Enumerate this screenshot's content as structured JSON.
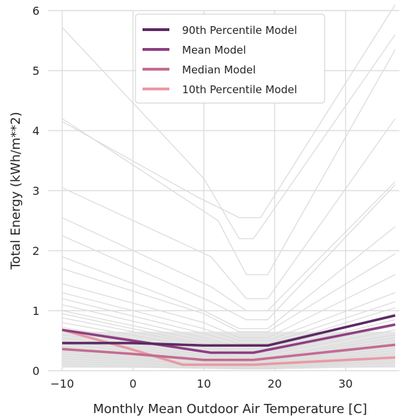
{
  "chart_data": {
    "type": "line",
    "xlabel": "Monthly Mean Outdoor Air Temperature [C]",
    "ylabel": "Total Energy (kWh/m**2)",
    "xlim": [
      -12,
      37.6
    ],
    "ylim": [
      0,
      6
    ],
    "xticks": [
      -10,
      0,
      10,
      20,
      30
    ],
    "yticks": [
      0,
      1,
      2,
      3,
      4,
      5,
      6
    ],
    "xtick_labels": [
      "−10",
      "0",
      "10",
      "20",
      "30"
    ],
    "ytick_labels": [
      "0",
      "1",
      "2",
      "3",
      "4",
      "5",
      "6"
    ],
    "grid": true,
    "legend_position": "top-center",
    "background_series_color": "#dcdcdc",
    "background_series": [
      [
        [
          -10,
          5.72
        ],
        [
          10,
          3.2
        ],
        [
          15,
          2.2
        ],
        [
          17,
          2.2
        ],
        [
          37,
          5.6
        ]
      ],
      [
        [
          -10,
          4.2
        ],
        [
          12,
          2.5
        ],
        [
          16,
          1.6
        ],
        [
          19,
          1.6
        ],
        [
          37,
          5.35
        ]
      ],
      [
        [
          -10,
          4.15
        ],
        [
          9,
          2.9
        ],
        [
          15,
          2.55
        ],
        [
          18,
          2.55
        ],
        [
          37,
          6.1
        ]
      ],
      [
        [
          -10,
          3.05
        ],
        [
          11,
          1.9
        ],
        [
          16,
          1.2
        ],
        [
          19,
          1.2
        ],
        [
          37,
          4.2
        ]
      ],
      [
        [
          -10,
          2.55
        ],
        [
          11,
          1.4
        ],
        [
          16,
          1.0
        ],
        [
          19,
          1.0
        ],
        [
          37,
          3.15
        ]
      ],
      [
        [
          -10,
          2.25
        ],
        [
          11,
          1.15
        ],
        [
          16,
          0.85
        ],
        [
          19,
          0.85
        ],
        [
          37,
          3.1
        ]
      ],
      [
        [
          -10,
          1.9
        ],
        [
          10,
          1.0
        ],
        [
          15,
          0.7
        ],
        [
          19,
          0.7
        ],
        [
          37,
          2.4
        ]
      ],
      [
        [
          -10,
          1.7
        ],
        [
          10,
          0.95
        ],
        [
          15,
          0.65
        ],
        [
          19,
          0.65
        ],
        [
          37,
          1.95
        ]
      ],
      [
        [
          -10,
          1.45
        ],
        [
          10,
          0.8
        ],
        [
          15,
          0.55
        ],
        [
          19,
          0.55
        ],
        [
          37,
          1.6
        ]
      ],
      [
        [
          -10,
          1.3
        ],
        [
          10,
          0.7
        ],
        [
          15,
          0.5
        ],
        [
          19,
          0.5
        ],
        [
          37,
          1.3
        ]
      ],
      [
        [
          -10,
          1.2
        ],
        [
          10,
          0.62
        ],
        [
          15,
          0.45
        ],
        [
          19,
          0.45
        ],
        [
          37,
          1.15
        ]
      ],
      [
        [
          -10,
          1.1
        ],
        [
          10,
          0.55
        ],
        [
          15,
          0.4
        ],
        [
          19,
          0.4
        ],
        [
          37,
          1.05
        ]
      ],
      [
        [
          -10,
          1.0
        ],
        [
          10,
          0.5
        ],
        [
          15,
          0.37
        ],
        [
          19,
          0.37
        ],
        [
          37,
          0.95
        ]
      ],
      [
        [
          -10,
          0.95
        ],
        [
          10,
          0.45
        ],
        [
          15,
          0.33
        ],
        [
          19,
          0.33
        ],
        [
          37,
          0.85
        ]
      ],
      [
        [
          -10,
          0.88
        ],
        [
          10,
          0.42
        ],
        [
          15,
          0.3
        ],
        [
          19,
          0.3
        ],
        [
          37,
          0.75
        ]
      ],
      [
        [
          -10,
          0.8
        ],
        [
          10,
          0.38
        ],
        [
          15,
          0.27
        ],
        [
          19,
          0.27
        ],
        [
          37,
          0.68
        ]
      ],
      [
        [
          -10,
          0.72
        ],
        [
          10,
          0.33
        ],
        [
          15,
          0.23
        ],
        [
          19,
          0.23
        ],
        [
          37,
          0.6
        ]
      ],
      [
        [
          -10,
          0.66
        ],
        [
          10,
          0.3
        ],
        [
          15,
          0.21
        ],
        [
          19,
          0.21
        ],
        [
          37,
          0.55
        ]
      ],
      [
        [
          -10,
          0.6
        ],
        [
          10,
          0.27
        ],
        [
          15,
          0.19
        ],
        [
          19,
          0.19
        ],
        [
          37,
          0.5
        ]
      ],
      [
        [
          -10,
          0.55
        ],
        [
          10,
          0.24
        ],
        [
          15,
          0.17
        ],
        [
          19,
          0.17
        ],
        [
          37,
          0.46
        ]
      ],
      [
        [
          -10,
          0.5
        ],
        [
          10,
          0.21
        ],
        [
          15,
          0.15
        ],
        [
          19,
          0.15
        ],
        [
          37,
          0.42
        ]
      ],
      [
        [
          -10,
          0.45
        ],
        [
          10,
          0.19
        ],
        [
          15,
          0.13
        ],
        [
          19,
          0.13
        ],
        [
          37,
          0.38
        ]
      ],
      [
        [
          -10,
          0.4
        ],
        [
          10,
          0.17
        ],
        [
          15,
          0.11
        ],
        [
          19,
          0.11
        ],
        [
          37,
          0.34
        ]
      ],
      [
        [
          -10,
          0.36
        ],
        [
          10,
          0.15
        ],
        [
          15,
          0.1
        ],
        [
          19,
          0.1
        ],
        [
          37,
          0.3
        ]
      ],
      [
        [
          -10,
          0.32
        ],
        [
          10,
          0.13
        ],
        [
          15,
          0.09
        ],
        [
          19,
          0.09
        ],
        [
          37,
          0.27
        ]
      ],
      [
        [
          -10,
          0.28
        ],
        [
          10,
          0.11
        ],
        [
          15,
          0.08
        ],
        [
          19,
          0.08
        ],
        [
          37,
          0.24
        ]
      ],
      [
        [
          -10,
          0.24
        ],
        [
          10,
          0.1
        ],
        [
          15,
          0.07
        ],
        [
          19,
          0.07
        ],
        [
          37,
          0.21
        ]
      ],
      [
        [
          -10,
          0.2
        ],
        [
          10,
          0.08
        ],
        [
          15,
          0.06
        ],
        [
          19,
          0.06
        ],
        [
          37,
          0.18
        ]
      ],
      [
        [
          -10,
          0.16
        ],
        [
          10,
          0.07
        ],
        [
          15,
          0.05
        ],
        [
          19,
          0.05
        ],
        [
          37,
          0.15
        ]
      ],
      [
        [
          -10,
          0.12
        ],
        [
          10,
          0.05
        ],
        [
          15,
          0.04
        ],
        [
          19,
          0.04
        ],
        [
          37,
          0.12
        ]
      ],
      [
        [
          -10,
          0.08
        ],
        [
          10,
          0.04
        ],
        [
          15,
          0.03
        ],
        [
          19,
          0.03
        ],
        [
          37,
          0.08
        ]
      ]
    ],
    "series": [
      {
        "name": "90th Percentile Model",
        "color": "#5b2a63",
        "points": [
          [
            -10,
            0.46
          ],
          [
            0,
            0.46
          ],
          [
            10,
            0.42
          ],
          [
            19,
            0.42
          ],
          [
            37,
            0.92
          ]
        ]
      },
      {
        "name": "Mean Model",
        "color": "#8e3e82",
        "points": [
          [
            -10,
            0.68
          ],
          [
            0,
            0.5
          ],
          [
            11,
            0.3
          ],
          [
            17,
            0.3
          ],
          [
            37,
            0.77
          ]
        ]
      },
      {
        "name": "Median Model",
        "color": "#c46c92",
        "points": [
          [
            -10,
            0.36
          ],
          [
            0,
            0.28
          ],
          [
            10,
            0.18
          ],
          [
            17,
            0.18
          ],
          [
            37,
            0.43
          ]
        ]
      },
      {
        "name": "10th Percentile Model",
        "color": "#e89aa4",
        "points": [
          [
            -10,
            0.68
          ],
          [
            0,
            0.35
          ],
          [
            7,
            0.1
          ],
          [
            17,
            0.1
          ],
          [
            37,
            0.22
          ]
        ]
      }
    ]
  }
}
